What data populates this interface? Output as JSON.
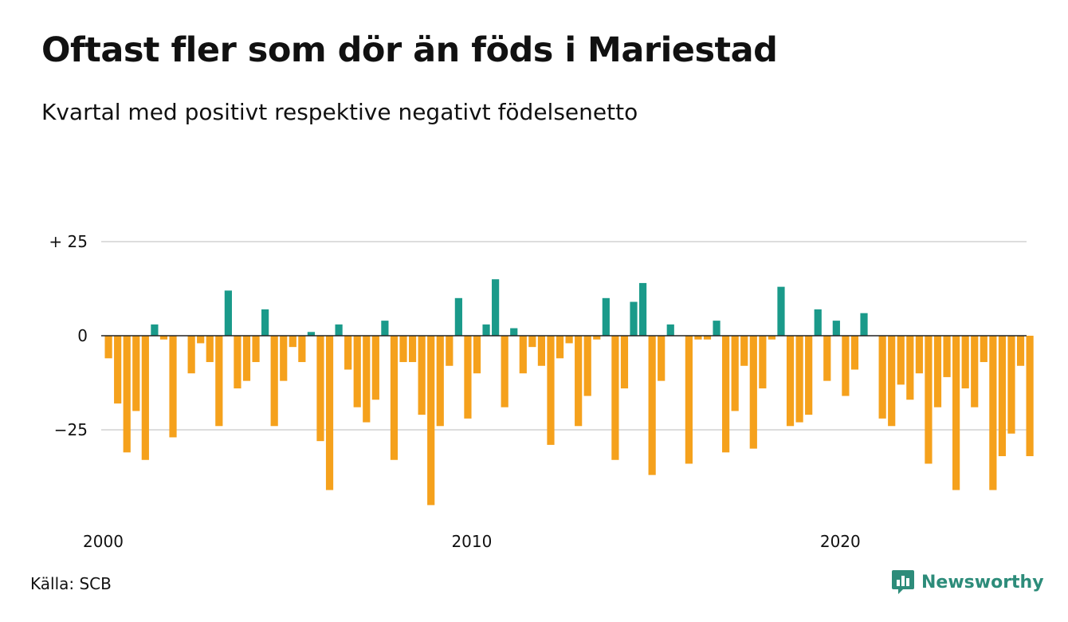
{
  "title": "Oftast fler som dör än föds i Mariestad",
  "subtitle": "Kvartal med positivt respektive negativt födelsenetto",
  "source": "Källa: SCB",
  "brand": {
    "name": "Newsworthy",
    "icon": "newsworthy-logo-icon"
  },
  "colors": {
    "positive": "#1a9a8a",
    "negative": "#f5a11c",
    "grid": "#dddddd",
    "zero_line": "#222222"
  },
  "chart_data": {
    "type": "bar",
    "x_start": "2000 Q1",
    "x_ticks": [
      "2000",
      "2010",
      "2020"
    ],
    "y_ticks": [
      {
        "value": 25,
        "label": "+ 25"
      },
      {
        "value": 0,
        "label": "0"
      },
      {
        "value": -25,
        "label": "−25"
      }
    ],
    "ylim": [
      -48,
      25
    ],
    "grid": true,
    "values": [
      -6,
      -18,
      -31,
      -20,
      -33,
      3,
      -1,
      -27,
      0,
      -10,
      -2,
      -7,
      -24,
      12,
      -14,
      -12,
      -7,
      7,
      -24,
      -12,
      -3,
      -7,
      1,
      -28,
      -41,
      3,
      -9,
      -19,
      -23,
      -17,
      4,
      -33,
      -7,
      -7,
      -21,
      -45,
      -24,
      -8,
      10,
      -22,
      -10,
      3,
      15,
      -19,
      2,
      -10,
      -3,
      -8,
      -29,
      -6,
      -2,
      -24,
      -16,
      -1,
      10,
      -33,
      -14,
      9,
      14,
      -37,
      -12,
      3,
      0,
      -34,
      -1,
      -1,
      4,
      -31,
      -20,
      -8,
      -30,
      -14,
      -1,
      13,
      -24,
      -23,
      -21,
      7,
      -12,
      4,
      -16,
      -9,
      6,
      0,
      -22,
      -24,
      -13,
      -17,
      -10,
      -34,
      -19,
      -11,
      -41,
      -14,
      -19,
      -7,
      -41,
      -32,
      -26,
      -8,
      -32
    ]
  }
}
